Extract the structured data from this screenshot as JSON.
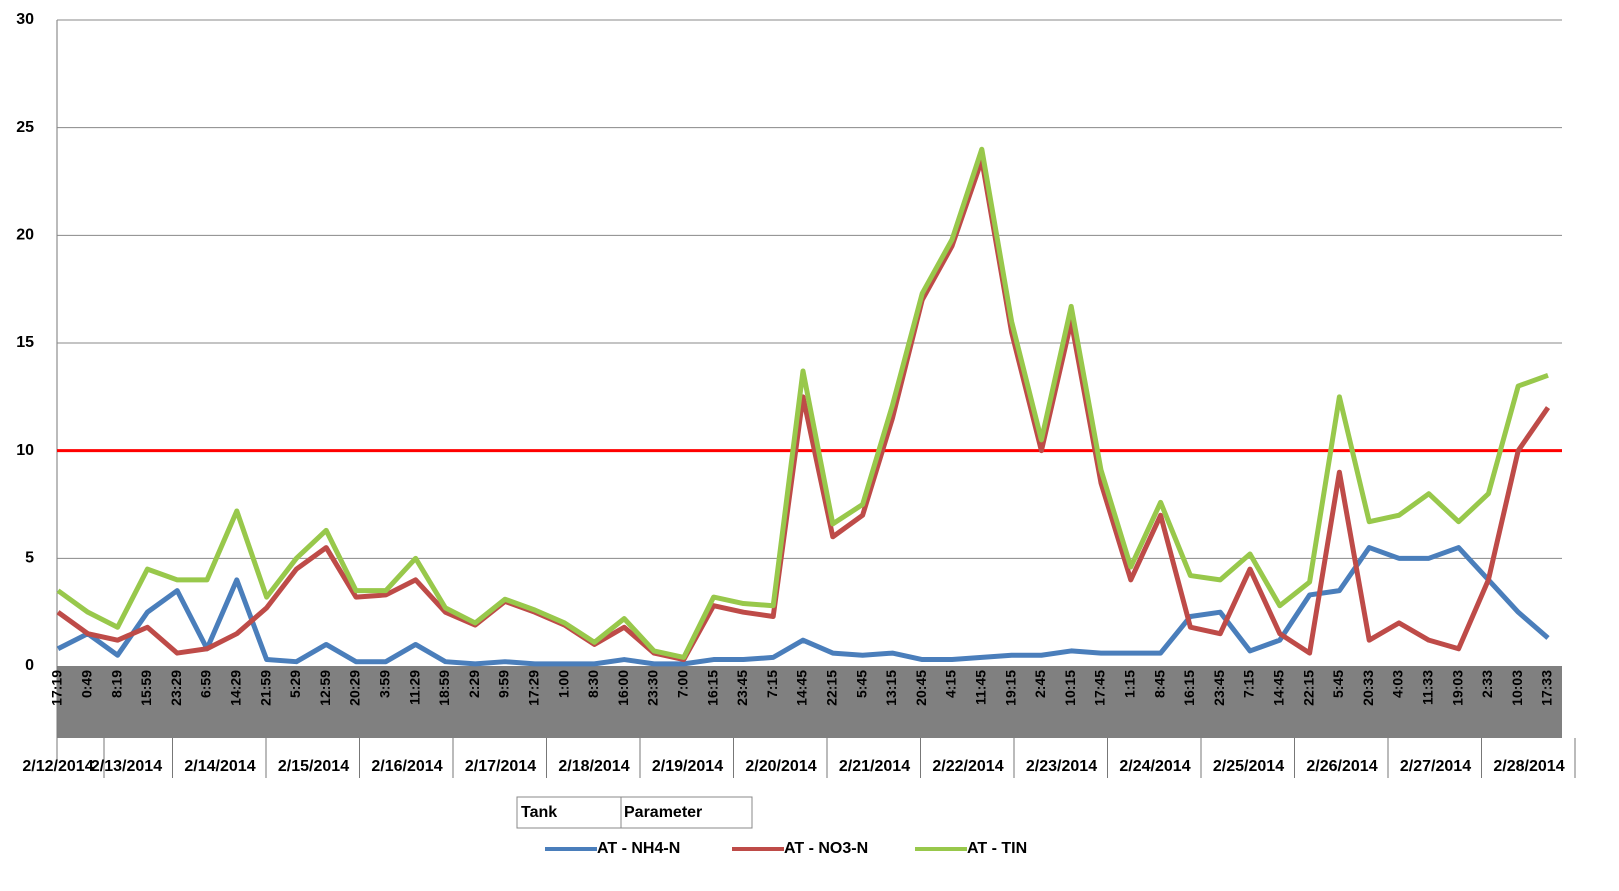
{
  "chart_data": {
    "type": "line",
    "categories": [
      "17:19",
      "0:49",
      "8:19",
      "15:59",
      "23:29",
      "6:59",
      "14:29",
      "21:59",
      "5:29",
      "12:59",
      "20:29",
      "3:59",
      "11:29",
      "18:59",
      "2:29",
      "9:59",
      "17:29",
      "1:00",
      "8:30",
      "16:00",
      "23:30",
      "7:00",
      "16:15",
      "23:45",
      "7:15",
      "14:45",
      "22:15",
      "5:45",
      "13:15",
      "20:45",
      "4:15",
      "11:45",
      "19:15",
      "2:45",
      "10:15",
      "17:45",
      "1:15",
      "8:45",
      "16:15",
      "23:45",
      "7:15",
      "14:45",
      "22:15",
      "5:45",
      "20:33",
      "4:03",
      "11:33",
      "19:03",
      "2:33",
      "10:03",
      "17:33"
    ],
    "dates": [
      "2/12/2014",
      "2/13/2014",
      "2/14/2014",
      "2/15/2014",
      "2/16/2014",
      "2/17/2014",
      "2/18/2014",
      "2/19/2014",
      "2/20/2014",
      "2/21/2014",
      "2/22/2014",
      "2/23/2014",
      "2/24/2014",
      "2/25/2014",
      "2/26/2014",
      "2/27/2014",
      "2/28/2014"
    ],
    "series": [
      {
        "name": "AT - NH4-N",
        "color": "#4a7ebb",
        "values": [
          0.8,
          1.5,
          0.5,
          2.5,
          3.5,
          0.8,
          4.0,
          0.3,
          0.2,
          1.0,
          0.2,
          0.2,
          1.0,
          0.2,
          0.1,
          0.2,
          0.1,
          0.1,
          0.1,
          0.3,
          0.1,
          0.1,
          0.3,
          0.3,
          0.4,
          1.2,
          0.6,
          0.5,
          0.6,
          0.3,
          0.3,
          0.4,
          0.5,
          0.5,
          0.7,
          0.6,
          0.6,
          0.6,
          2.3,
          2.5,
          0.7,
          1.2,
          3.3,
          3.5,
          5.5,
          5.0,
          5.0,
          5.5,
          4.0,
          2.5,
          1.3
        ]
      },
      {
        "name": "AT - NO3-N",
        "color": "#be4b48",
        "values": [
          2.5,
          1.5,
          1.2,
          1.8,
          0.6,
          0.8,
          1.5,
          2.7,
          4.5,
          5.5,
          3.2,
          3.3,
          4.0,
          2.5,
          1.9,
          3.0,
          2.5,
          1.9,
          1.0,
          1.8,
          0.6,
          0.3,
          2.8,
          2.5,
          2.3,
          12.5,
          6.0,
          7.0,
          11.5,
          17.0,
          19.5,
          23.5,
          15.5,
          10.0,
          16.0,
          8.5,
          4.0,
          7.0,
          1.8,
          1.5,
          4.5,
          1.5,
          0.6,
          9.0,
          1.2,
          2.0,
          1.2,
          0.8,
          4.0,
          10.0,
          12.0
        ]
      },
      {
        "name": "AT - TIN",
        "color": "#98c84b",
        "values": [
          3.5,
          2.5,
          1.8,
          4.5,
          4.0,
          4.0,
          7.2,
          3.2,
          5.0,
          6.3,
          3.5,
          3.5,
          5.0,
          2.7,
          2.0,
          3.1,
          2.6,
          2.0,
          1.1,
          2.2,
          0.7,
          0.4,
          3.2,
          2.9,
          2.8,
          13.7,
          6.6,
          7.5,
          12.1,
          17.3,
          19.8,
          24.0,
          16.0,
          10.5,
          16.7,
          9.1,
          4.6,
          7.6,
          4.2,
          4.0,
          5.2,
          2.8,
          3.9,
          12.5,
          6.7,
          7.0,
          8.0,
          6.7,
          8.0,
          13.0,
          13.5
        ]
      }
    ],
    "reference_line": {
      "value": 10,
      "color": "#ff0000"
    },
    "ylim": [
      0,
      30
    ],
    "yticks": [
      0,
      5,
      10,
      15,
      20,
      25,
      30
    ],
    "grid": true,
    "pivot_fields": [
      "Tank",
      "Parameter"
    ]
  }
}
